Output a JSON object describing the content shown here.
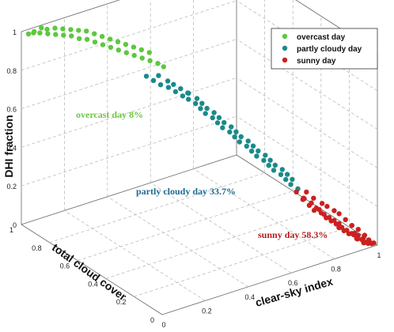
{
  "chart_data": {
    "type": "scatter",
    "projection": "3d",
    "title": "",
    "xlabel": "clear-sky index",
    "ylabel": "total cloud cover",
    "zlabel": "DHI fraction",
    "xlim": [
      0,
      1
    ],
    "ylim": [
      0,
      1
    ],
    "zlim": [
      0,
      1
    ],
    "x_ticks": [
      "0",
      "0.2",
      "0.4",
      "0.6",
      "0.8",
      "1"
    ],
    "y_ticks": [
      "0",
      "0.2",
      "0.4",
      "0.6",
      "0.8",
      "1"
    ],
    "z_ticks": [
      "0",
      "0.2",
      "0.4",
      "0.6",
      "0.8",
      "1"
    ],
    "grid": true,
    "legend_position": "top-right",
    "series": [
      {
        "name": "overcast day",
        "color": "#5dc83f",
        "annotation": "overcast day  8%",
        "points": [
          [
            0.02,
            0.98,
            0.99
          ],
          [
            0.04,
            0.97,
            1.0
          ],
          [
            0.05,
            0.99,
            0.98
          ],
          [
            0.06,
            0.96,
            0.99
          ],
          [
            0.08,
            0.98,
            1.0
          ],
          [
            0.09,
            0.95,
            0.98
          ],
          [
            0.1,
            0.97,
            0.99
          ],
          [
            0.12,
            0.94,
            0.97
          ],
          [
            0.13,
            0.96,
            0.99
          ],
          [
            0.15,
            0.93,
            0.96
          ],
          [
            0.16,
            0.95,
            0.98
          ],
          [
            0.18,
            0.92,
            0.95
          ],
          [
            0.19,
            0.94,
            0.97
          ],
          [
            0.21,
            0.91,
            0.93
          ],
          [
            0.22,
            0.93,
            0.96
          ],
          [
            0.24,
            0.9,
            0.92
          ],
          [
            0.25,
            0.92,
            0.95
          ],
          [
            0.27,
            0.89,
            0.9
          ],
          [
            0.28,
            0.91,
            0.93
          ],
          [
            0.3,
            0.88,
            0.88
          ],
          [
            0.31,
            0.9,
            0.91
          ],
          [
            0.33,
            0.87,
            0.86
          ],
          [
            0.34,
            0.89,
            0.89
          ],
          [
            0.36,
            0.86,
            0.84
          ],
          [
            0.37,
            0.88,
            0.87
          ],
          [
            0.39,
            0.85,
            0.82
          ],
          [
            0.4,
            0.87,
            0.85
          ],
          [
            0.42,
            0.84,
            0.8
          ],
          [
            0.43,
            0.86,
            0.83
          ],
          [
            0.45,
            0.83,
            0.78
          ],
          [
            0.46,
            0.85,
            0.81
          ],
          [
            0.48,
            0.82,
            0.76
          ],
          [
            0.49,
            0.84,
            0.79
          ],
          [
            0.51,
            0.81,
            0.74
          ],
          [
            0.53,
            0.8,
            0.72
          ]
        ]
      },
      {
        "name": "partly cloudy day",
        "color": "#1a8a8a",
        "annotation": "partly cloudy day 33.7%",
        "points": [
          [
            0.45,
            0.8,
            0.7
          ],
          [
            0.47,
            0.78,
            0.68
          ],
          [
            0.49,
            0.76,
            0.66
          ],
          [
            0.5,
            0.79,
            0.69
          ],
          [
            0.52,
            0.75,
            0.64
          ],
          [
            0.53,
            0.77,
            0.66
          ],
          [
            0.54,
            0.73,
            0.62
          ],
          [
            0.55,
            0.76,
            0.64
          ],
          [
            0.56,
            0.71,
            0.6
          ],
          [
            0.57,
            0.74,
            0.62
          ],
          [
            0.58,
            0.7,
            0.58
          ],
          [
            0.59,
            0.72,
            0.6
          ],
          [
            0.6,
            0.68,
            0.56
          ],
          [
            0.6,
            0.73,
            0.59
          ],
          [
            0.61,
            0.66,
            0.54
          ],
          [
            0.62,
            0.7,
            0.57
          ],
          [
            0.62,
            0.64,
            0.52
          ],
          [
            0.63,
            0.68,
            0.55
          ],
          [
            0.64,
            0.62,
            0.5
          ],
          [
            0.64,
            0.66,
            0.53
          ],
          [
            0.65,
            0.6,
            0.48
          ],
          [
            0.66,
            0.64,
            0.51
          ],
          [
            0.66,
            0.58,
            0.46
          ],
          [
            0.67,
            0.62,
            0.49
          ],
          [
            0.68,
            0.56,
            0.44
          ],
          [
            0.68,
            0.6,
            0.47
          ],
          [
            0.69,
            0.54,
            0.42
          ],
          [
            0.7,
            0.58,
            0.45
          ],
          [
            0.7,
            0.52,
            0.4
          ],
          [
            0.71,
            0.56,
            0.43
          ],
          [
            0.72,
            0.5,
            0.38
          ],
          [
            0.72,
            0.54,
            0.41
          ],
          [
            0.73,
            0.48,
            0.36
          ],
          [
            0.74,
            0.52,
            0.39
          ],
          [
            0.74,
            0.46,
            0.34
          ],
          [
            0.75,
            0.5,
            0.37
          ],
          [
            0.76,
            0.44,
            0.32
          ],
          [
            0.76,
            0.48,
            0.35
          ],
          [
            0.77,
            0.42,
            0.3
          ],
          [
            0.78,
            0.46,
            0.33
          ],
          [
            0.78,
            0.4,
            0.28
          ],
          [
            0.79,
            0.44,
            0.31
          ],
          [
            0.8,
            0.38,
            0.26
          ],
          [
            0.8,
            0.42,
            0.29
          ],
          [
            0.81,
            0.36,
            0.24
          ],
          [
            0.82,
            0.4,
            0.27
          ],
          [
            0.82,
            0.34,
            0.22
          ],
          [
            0.83,
            0.38,
            0.25
          ],
          [
            0.84,
            0.32,
            0.2
          ],
          [
            0.84,
            0.36,
            0.23
          ]
        ]
      },
      {
        "name": "sunny day",
        "color": "#cc2020",
        "annotation": "sunny day 58.3%",
        "points": [
          [
            0.82,
            0.3,
            0.2
          ],
          [
            0.83,
            0.26,
            0.18
          ],
          [
            0.84,
            0.28,
            0.17
          ],
          [
            0.85,
            0.24,
            0.16
          ],
          [
            0.85,
            0.3,
            0.15
          ],
          [
            0.86,
            0.22,
            0.14
          ],
          [
            0.86,
            0.27,
            0.13
          ],
          [
            0.87,
            0.2,
            0.12
          ],
          [
            0.87,
            0.25,
            0.11
          ],
          [
            0.88,
            0.18,
            0.1
          ],
          [
            0.88,
            0.23,
            0.12
          ],
          [
            0.89,
            0.16,
            0.09
          ],
          [
            0.89,
            0.21,
            0.1
          ],
          [
            0.9,
            0.14,
            0.08
          ],
          [
            0.9,
            0.19,
            0.09
          ],
          [
            0.9,
            0.12,
            0.07
          ],
          [
            0.91,
            0.17,
            0.08
          ],
          [
            0.91,
            0.1,
            0.06
          ],
          [
            0.92,
            0.15,
            0.07
          ],
          [
            0.92,
            0.08,
            0.05
          ],
          [
            0.92,
            0.13,
            0.06
          ],
          [
            0.93,
            0.06,
            0.05
          ],
          [
            0.93,
            0.11,
            0.05
          ],
          [
            0.93,
            0.04,
            0.04
          ],
          [
            0.94,
            0.09,
            0.04
          ],
          [
            0.94,
            0.05,
            0.03
          ],
          [
            0.94,
            0.07,
            0.05
          ],
          [
            0.95,
            0.03,
            0.03
          ],
          [
            0.95,
            0.06,
            0.04
          ],
          [
            0.95,
            0.02,
            0.02
          ],
          [
            0.96,
            0.04,
            0.03
          ],
          [
            0.96,
            0.02,
            0.02
          ],
          [
            0.96,
            0.05,
            0.02
          ],
          [
            0.97,
            0.01,
            0.02
          ],
          [
            0.97,
            0.03,
            0.01
          ],
          [
            0.97,
            0.02,
            0.01
          ],
          [
            0.98,
            0.01,
            0.01
          ],
          [
            0.98,
            0.03,
            0.02
          ],
          [
            0.98,
            0.02,
            0.01
          ],
          [
            0.99,
            0.01,
            0.01
          ],
          [
            0.86,
            0.29,
            0.19
          ],
          [
            0.88,
            0.27,
            0.16
          ],
          [
            0.9,
            0.24,
            0.14
          ],
          [
            0.91,
            0.22,
            0.13
          ],
          [
            0.93,
            0.2,
            0.11
          ],
          [
            0.94,
            0.18,
            0.1
          ],
          [
            0.95,
            0.15,
            0.08
          ],
          [
            0.96,
            0.12,
            0.06
          ],
          [
            0.97,
            0.09,
            0.05
          ],
          [
            0.98,
            0.06,
            0.03
          ]
        ]
      }
    ]
  }
}
